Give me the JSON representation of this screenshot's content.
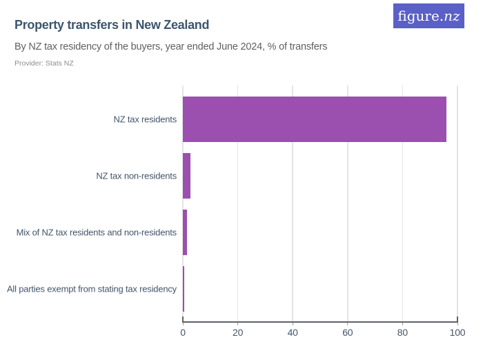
{
  "header": {
    "title": "Property transfers in New Zealand",
    "subtitle": "By NZ tax residency of the buyers, year ended June 2024, % of transfers",
    "provider": "Provider: Stats NZ",
    "logo_prefix": "figure.",
    "logo_suffix": "nz"
  },
  "colors": {
    "bar": "#9B4FAF",
    "title": "#3B566E",
    "subtitle": "#5F5F5F",
    "provider": "#8C8C8C",
    "axis_text": "#44556A",
    "gridline": "#E4E4E4",
    "axis_line": "#5C6066",
    "logo_bg": "#5A60C6"
  },
  "chart_data": {
    "type": "bar",
    "orientation": "horizontal",
    "title": "Property transfers in New Zealand",
    "subtitle": "By NZ tax residency of the buyers, year ended June 2024, % of transfers",
    "source": "Stats NZ",
    "categories": [
      "NZ tax residents",
      "NZ tax non-residents",
      "Mix of NZ tax residents and non-residents",
      "All parties exempt from stating tax residency"
    ],
    "values": [
      96,
      2.7,
      1.6,
      0.4
    ],
    "unit": "% of transfers",
    "xlabel": "",
    "ylabel": "",
    "xlim": [
      0,
      100
    ],
    "xticks": [
      0,
      20,
      40,
      60,
      80,
      100
    ],
    "grid": true,
    "legend": false
  }
}
